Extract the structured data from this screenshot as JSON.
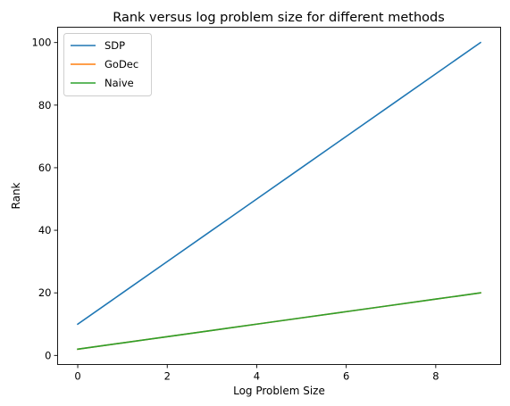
{
  "chart_data": {
    "type": "line",
    "title": "Rank versus log problem size for different methods",
    "xlabel": "Log Problem Size",
    "ylabel": "Rank",
    "xlim": [
      -0.45,
      9.45
    ],
    "ylim": [
      -2.9,
      104.9
    ],
    "xticks": [
      0,
      2,
      4,
      6,
      8
    ],
    "yticks": [
      0,
      20,
      40,
      60,
      80,
      100
    ],
    "grid": false,
    "legend": "top-left",
    "x": [
      0,
      1,
      2,
      3,
      4,
      5,
      6,
      7,
      8,
      9
    ],
    "series": [
      {
        "name": "SDP",
        "color": "#1f77b4",
        "values": [
          10,
          20,
          30,
          40,
          50,
          60,
          70,
          80,
          90,
          100
        ]
      },
      {
        "name": "GoDec",
        "color": "#ff7f0e",
        "values": [
          2,
          4,
          6,
          8,
          10,
          12,
          14,
          16,
          18,
          20
        ]
      },
      {
        "name": "Naive",
        "color": "#2ca02c",
        "values": [
          2,
          4,
          6,
          8,
          10,
          12,
          14,
          16,
          18,
          20
        ]
      }
    ]
  }
}
